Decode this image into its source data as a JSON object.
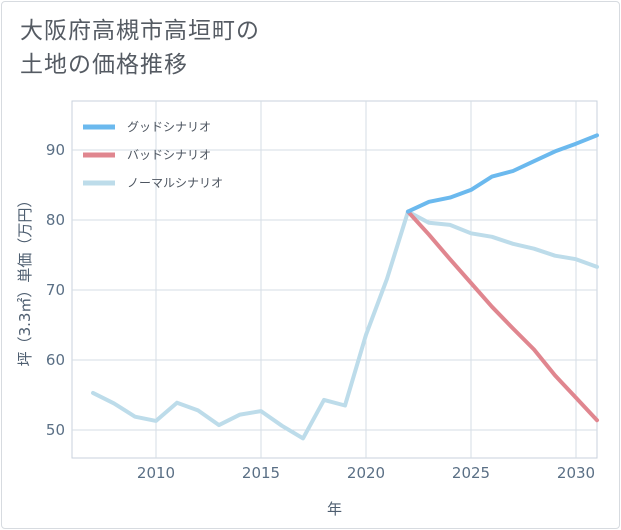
{
  "title": {
    "line1": "大阪府高槻市高垣町の",
    "line2": "土地の価格推移"
  },
  "chart_data": {
    "type": "line",
    "xlabel": "年",
    "ylabel": "坪（3.3㎡）単価（万円）",
    "xlim": [
      2006,
      2031
    ],
    "ylim": [
      46,
      97
    ],
    "xticks": [
      2010,
      2015,
      2020,
      2025,
      2030
    ],
    "yticks": [
      50,
      60,
      70,
      80,
      90
    ],
    "grid": true,
    "legend_position": "top-left",
    "series": [
      {
        "name": "グッドシナリオ",
        "color": "#6bb9ee",
        "x": [
          2022,
          2023,
          2024,
          2025,
          2026,
          2027,
          2028,
          2029,
          2030,
          2031
        ],
        "y": [
          81.2,
          82.6,
          83.2,
          84.3,
          86.2,
          87.0,
          88.4,
          89.8,
          90.9,
          92.1
        ]
      },
      {
        "name": "バッドシナリオ",
        "color": "#e0868f",
        "x": [
          2022,
          2023,
          2024,
          2025,
          2026,
          2027,
          2028,
          2029,
          2030,
          2031
        ],
        "y": [
          81.2,
          77.9,
          74.4,
          71.0,
          67.6,
          64.5,
          61.5,
          57.8,
          54.6,
          51.4
        ]
      },
      {
        "name": "ノーマルシナリオ",
        "color": "#bddcea",
        "x": [
          2007,
          2008,
          2009,
          2010,
          2011,
          2012,
          2013,
          2014,
          2015,
          2016,
          2017,
          2018,
          2019,
          2020,
          2021,
          2022,
          2023,
          2024,
          2025,
          2026,
          2027,
          2028,
          2029,
          2030,
          2031
        ],
        "y": [
          55.3,
          53.8,
          51.9,
          51.3,
          53.9,
          52.8,
          50.7,
          52.2,
          52.7,
          50.6,
          48.8,
          54.3,
          53.5,
          63.6,
          71.6,
          81.2,
          79.6,
          79.3,
          78.1,
          77.6,
          76.6,
          75.9,
          74.9,
          74.4,
          73.3
        ]
      }
    ]
  }
}
